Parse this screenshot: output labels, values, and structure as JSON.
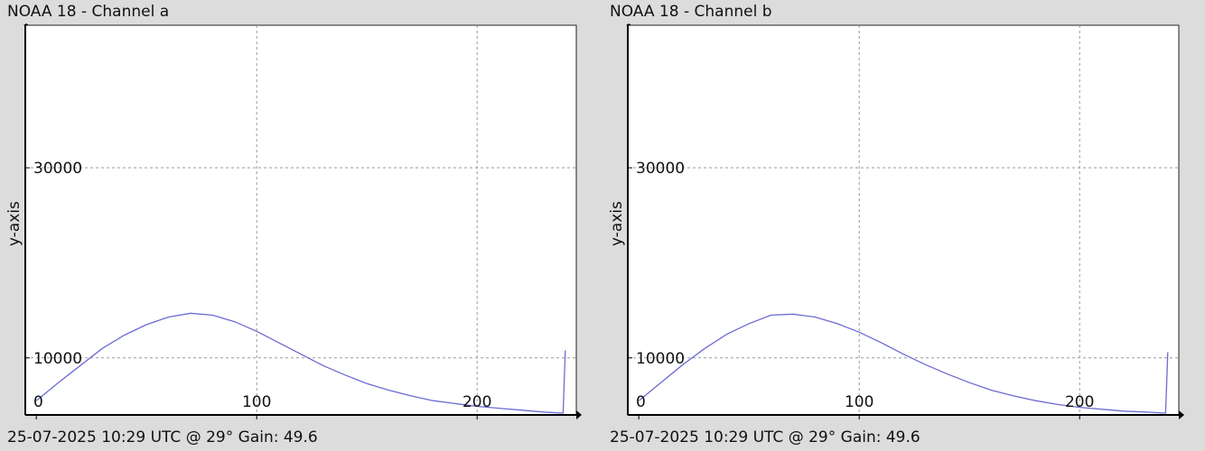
{
  "chart_data": [
    {
      "type": "line",
      "title": "NOAA 18 - Channel a",
      "footer": "25-07-2025 10:29 UTC @ 29° Gain: 49.6",
      "xlabel": "",
      "ylabel": "y-axis",
      "xlim": [
        -5,
        245
      ],
      "ylim": [
        4000,
        45000
      ],
      "xticks": [
        0,
        100,
        200
      ],
      "yticks": [
        10000,
        30000
      ],
      "ytick_labels": [
        "10000",
        "30000"
      ],
      "grid": true,
      "series_color": "#6b6bd1",
      "series": [
        {
          "x": [
            0,
            10,
            20,
            30,
            40,
            50,
            60,
            70,
            80,
            90,
            100,
            110,
            120,
            130,
            140,
            150,
            160,
            170,
            180,
            190,
            200,
            210,
            220,
            230,
            238,
            239,
            240
          ],
          "y": [
            5500,
            7400,
            9200,
            11000,
            12400,
            13500,
            14300,
            14700,
            14500,
            13800,
            12800,
            11600,
            10400,
            9200,
            8200,
            7300,
            6600,
            6000,
            5500,
            5200,
            4900,
            4700,
            4500,
            4300,
            4200,
            4200,
            10800
          ]
        }
      ]
    },
    {
      "type": "line",
      "title": "NOAA 18 - Channel b",
      "footer": "25-07-2025 10:29 UTC @ 29° Gain: 49.6",
      "xlabel": "",
      "ylabel": "y-axis",
      "xlim": [
        -5,
        245
      ],
      "ylim": [
        4000,
        45000
      ],
      "xticks": [
        0,
        100,
        200
      ],
      "yticks": [
        10000,
        30000
      ],
      "ytick_labels": [
        "10000",
        "30000"
      ],
      "grid": true,
      "series_color": "#6b6bd1",
      "series": [
        {
          "x": [
            0,
            10,
            20,
            30,
            40,
            50,
            60,
            70,
            80,
            90,
            100,
            110,
            120,
            130,
            140,
            150,
            160,
            170,
            180,
            190,
            200,
            210,
            220,
            230,
            238,
            239,
            240
          ],
          "y": [
            5500,
            7400,
            9300,
            11000,
            12500,
            13600,
            14500,
            14600,
            14300,
            13600,
            12700,
            11600,
            10400,
            9300,
            8300,
            7400,
            6600,
            6000,
            5500,
            5100,
            4800,
            4600,
            4400,
            4300,
            4200,
            4200,
            10600
          ]
        }
      ]
    }
  ]
}
